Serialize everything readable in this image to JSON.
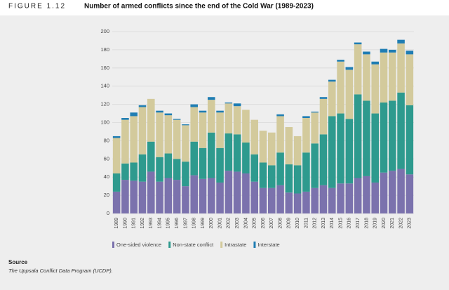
{
  "chart_data": {
    "type": "stacked-bar",
    "figure_label": "FIGURE 1.12",
    "title": "Number of armed conflicts since the end of the Cold War (1989-2023)",
    "categories": [
      "1989",
      "1990",
      "1991",
      "1992",
      "1993",
      "1994",
      "1995",
      "1996",
      "1997",
      "1998",
      "1999",
      "2000",
      "2001",
      "2002",
      "2003",
      "2004",
      "2005",
      "2006",
      "2007",
      "2008",
      "2009",
      "2010",
      "2011",
      "2012",
      "2013",
      "2014",
      "2015",
      "2016",
      "2017",
      "2018",
      "2019",
      "2020",
      "2021",
      "2022",
      "2023"
    ],
    "series": [
      {
        "name": "One-sided violence",
        "color": "#7b72ad",
        "values": [
          24,
          37,
          36,
          35,
          46,
          35,
          39,
          37,
          30,
          42,
          38,
          39,
          34,
          47,
          46,
          44,
          35,
          28,
          28,
          31,
          23,
          22,
          24,
          28,
          31,
          28,
          33,
          33,
          39,
          41,
          34,
          45,
          47,
          49,
          43
        ]
      },
      {
        "name": "Non-state conflict",
        "color": "#2e9a8e",
        "values": [
          20,
          18,
          20,
          30,
          33,
          27,
          27,
          23,
          27,
          37,
          34,
          50,
          38,
          41,
          41,
          34,
          30,
          28,
          25,
          36,
          31,
          31,
          43,
          49,
          56,
          79,
          77,
          71,
          92,
          83,
          76,
          77,
          77,
          84,
          76
        ]
      },
      {
        "name": "Intrastate",
        "color": "#d3ca9c",
        "values": [
          39,
          48,
          51,
          52,
          47,
          49,
          42,
          43,
          40,
          38,
          39,
          36,
          39,
          33,
          31,
          36,
          38,
          35,
          36,
          40,
          41,
          32,
          38,
          34,
          39,
          38,
          57,
          54,
          55,
          51,
          54,
          55,
          53,
          54,
          56
        ]
      },
      {
        "name": "Interstate",
        "color": "#1f7db3",
        "values": [
          2,
          2,
          4,
          2,
          0,
          2,
          2,
          1,
          1,
          3,
          2,
          3,
          2,
          1,
          3,
          0,
          0,
          0,
          0,
          2,
          0,
          0,
          2,
          1,
          2,
          2,
          2,
          3,
          2,
          3,
          3,
          4,
          3,
          4,
          4
        ]
      }
    ],
    "ylim": [
      0,
      200
    ],
    "yticks": [
      0,
      20,
      40,
      60,
      80,
      100,
      120,
      140,
      160,
      180,
      200
    ],
    "grid": true,
    "source_heading": "Source",
    "source_text": "The Uppsala Conflict Data Program (UCDP)."
  }
}
